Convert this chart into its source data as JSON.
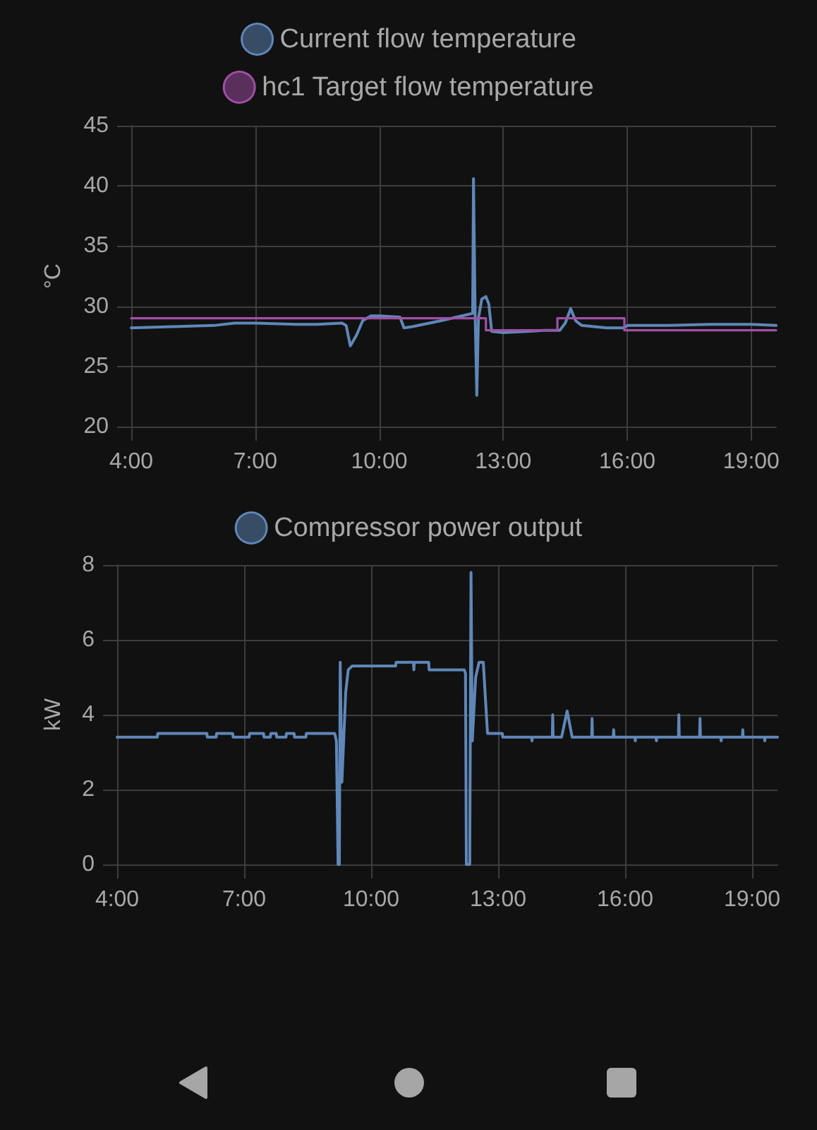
{
  "chart_data": [
    {
      "type": "line",
      "ylabel": "°C",
      "series": [
        {
          "name": "Current flow temperature",
          "color": "#5f87b9",
          "x": [
            4.0,
            5.0,
            6.0,
            6.5,
            7.0,
            8.0,
            8.5,
            9.1,
            9.2,
            9.3,
            9.45,
            9.6,
            9.8,
            10.0,
            10.5,
            10.6,
            10.8,
            11.5,
            12.26,
            12.28,
            12.32,
            12.36,
            12.4,
            12.48,
            12.58,
            12.65,
            12.72,
            13.0,
            13.5,
            14.0,
            14.37,
            14.5,
            14.63,
            14.75,
            14.9,
            15.5,
            15.9,
            16.0,
            17.0,
            18.0,
            19.0,
            19.6
          ],
          "values": [
            28.2,
            28.3,
            28.4,
            28.6,
            28.6,
            28.5,
            28.5,
            28.6,
            28.4,
            26.7,
            27.6,
            28.8,
            29.2,
            29.2,
            29.1,
            28.2,
            28.3,
            28.8,
            29.4,
            40.6,
            29.3,
            22.6,
            29.0,
            30.6,
            30.8,
            30.2,
            27.9,
            27.8,
            27.9,
            28.0,
            28.0,
            28.6,
            29.8,
            28.8,
            28.4,
            28.2,
            28.2,
            28.4,
            28.4,
            28.5,
            28.5,
            28.4
          ]
        },
        {
          "name": "hc1 Target flow temperature",
          "type": "step",
          "color": "#a050a5",
          "x": [
            4.0,
            12.58,
            14.31,
            15.93,
            19.6
          ],
          "values": [
            29.0,
            28.0,
            29.0,
            28.0,
            28.0
          ]
        }
      ],
      "xlim": [
        4,
        19.6
      ],
      "xticks": [
        {
          "value": 4,
          "label": "4:00"
        },
        {
          "value": 7,
          "label": "7:00"
        },
        {
          "value": 10,
          "label": "10:00"
        },
        {
          "value": 13,
          "label": "13:00"
        },
        {
          "value": 16,
          "label": "16:00"
        },
        {
          "value": 19,
          "label": "19:00"
        }
      ],
      "ylim": [
        20,
        45
      ],
      "yticks": [
        20,
        25,
        30,
        35,
        40,
        45
      ],
      "grid": true,
      "legend": "top",
      "marker": "none"
    },
    {
      "type": "line",
      "ylabel": "kW",
      "series": [
        {
          "name": "Compressor power output",
          "color": "#5f87b9",
          "x": [
            4.0,
            4.95,
            4.96,
            6.12,
            6.13,
            6.34,
            6.35,
            6.73,
            6.74,
            7.12,
            7.13,
            7.46,
            7.47,
            7.62,
            7.63,
            7.76,
            7.77,
            7.99,
            8.0,
            8.18,
            8.19,
            8.46,
            8.47,
            9.14,
            9.18,
            9.22,
            9.25,
            9.27,
            9.31,
            9.4,
            9.46,
            9.55,
            10.58,
            10.59,
            11.0,
            11.01,
            11.02,
            11.36,
            11.37,
            12.2,
            12.23,
            12.25,
            12.33,
            12.36,
            12.39,
            12.47,
            12.55,
            12.65,
            12.75,
            13.1,
            13.11,
            13.79,
            13.8,
            13.81,
            14.28,
            14.29,
            14.3,
            14.5,
            14.63,
            14.75,
            15.21,
            15.22,
            15.23,
            15.72,
            15.73,
            15.74,
            16.23,
            16.24,
            16.25,
            16.73,
            16.74,
            16.75,
            17.26,
            17.27,
            17.28,
            17.76,
            17.77,
            17.78,
            18.26,
            18.27,
            18.28,
            18.77,
            18.78,
            18.79,
            19.29,
            19.3,
            19.31,
            19.6
          ],
          "values": [
            3.4,
            3.4,
            3.5,
            3.5,
            3.4,
            3.4,
            3.5,
            3.5,
            3.4,
            3.4,
            3.5,
            3.5,
            3.4,
            3.4,
            3.5,
            3.5,
            3.4,
            3.4,
            3.5,
            3.5,
            3.4,
            3.4,
            3.5,
            3.5,
            3.3,
            0,
            0,
            5.4,
            2.2,
            4.6,
            5.2,
            5.3,
            5.3,
            5.4,
            5.4,
            5.2,
            5.4,
            5.4,
            5.2,
            5.2,
            5.1,
            0,
            0,
            7.8,
            3.3,
            5.0,
            5.4,
            5.4,
            3.5,
            3.5,
            3.4,
            3.4,
            3.3,
            3.4,
            3.4,
            4.0,
            3.4,
            3.4,
            4.1,
            3.4,
            3.4,
            3.9,
            3.4,
            3.4,
            3.6,
            3.4,
            3.4,
            3.3,
            3.4,
            3.4,
            3.3,
            3.4,
            3.4,
            4.0,
            3.4,
            3.4,
            3.9,
            3.4,
            3.4,
            3.3,
            3.4,
            3.4,
            3.6,
            3.4,
            3.4,
            3.3,
            3.4,
            3.4
          ]
        }
      ],
      "xlim": [
        4,
        19.6
      ],
      "xticks": [
        {
          "value": 4,
          "label": "4:00"
        },
        {
          "value": 7,
          "label": "7:00"
        },
        {
          "value": 10,
          "label": "10:00"
        },
        {
          "value": 13,
          "label": "13:00"
        },
        {
          "value": 16,
          "label": "16:00"
        },
        {
          "value": 19,
          "label": "19:00"
        }
      ],
      "ylim": [
        0,
        8
      ],
      "yticks": [
        0,
        2,
        4,
        6,
        8
      ],
      "grid": true,
      "legend": "top",
      "marker": "none"
    }
  ]
}
